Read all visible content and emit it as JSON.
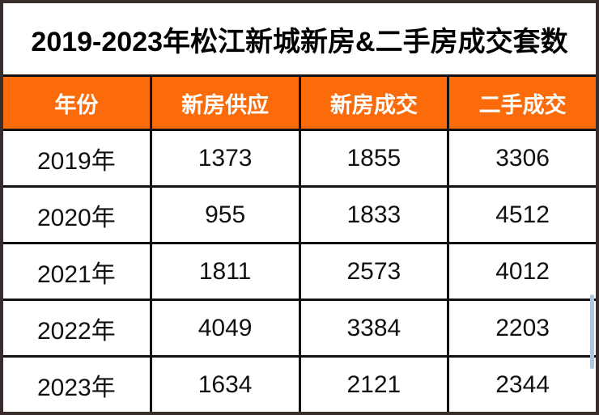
{
  "chart_data": {
    "type": "table",
    "title": "2019-2023年松江新城新房&二手房成交套数",
    "columns": [
      "年份",
      "新房供应",
      "新房成交",
      "二手成交"
    ],
    "rows": [
      [
        "2019年",
        1373,
        1855,
        3306
      ],
      [
        "2020年",
        955,
        1833,
        4512
      ],
      [
        "2021年",
        1811,
        2573,
        4012
      ],
      [
        "2022年",
        4049,
        3384,
        2203
      ],
      [
        "2023年",
        1634,
        2121,
        2344
      ]
    ]
  },
  "colors": {
    "header_bg": "#FB6B0A",
    "header_text": "#FFFFFF",
    "grid_line": "#111111",
    "frame_border": "#392D2B",
    "title_text": "#000000",
    "cell_text": "#111111",
    "scroll_artifact": "#A9C7E8"
  }
}
